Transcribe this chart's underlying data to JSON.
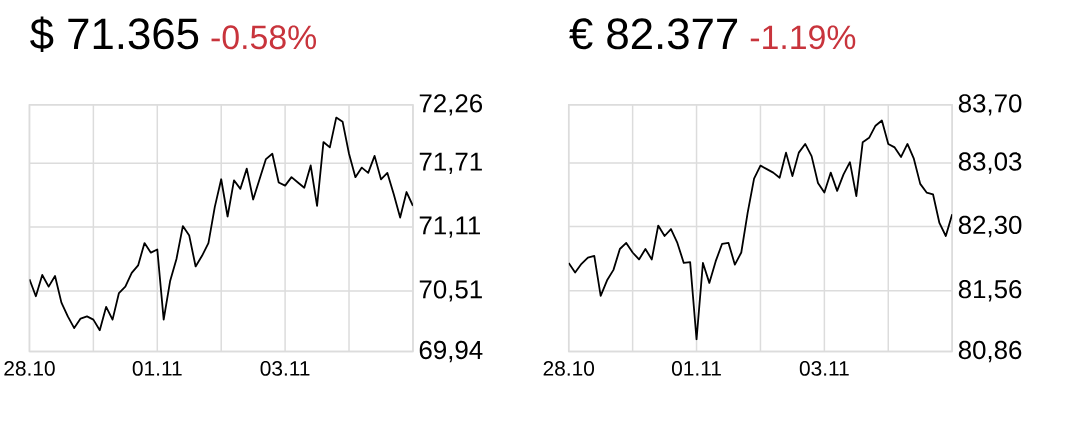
{
  "chart_data": [
    {
      "type": "line",
      "title": "$ 71.365",
      "subtitle": "-0.58%",
      "grid": true,
      "ylim": [
        69.94,
        72.26
      ],
      "yticks": [
        {
          "value": 69.94,
          "label": "69,94"
        },
        {
          "value": 70.51,
          "label": "70,51"
        },
        {
          "value": 71.11,
          "label": "71,11"
        },
        {
          "value": 71.71,
          "label": "71,71"
        },
        {
          "value": 72.26,
          "label": "72,26"
        }
      ],
      "categories": [
        "28.10",
        null,
        null,
        null,
        null,
        null,
        null,
        null,
        null,
        null,
        null,
        null,
        null,
        null,
        null,
        null,
        null,
        null,
        null,
        null,
        "01.11",
        null,
        null,
        null,
        null,
        null,
        null,
        null,
        null,
        null,
        null,
        null,
        null,
        null,
        null,
        null,
        null,
        null,
        null,
        null,
        "03.11",
        null,
        null,
        null,
        null,
        null,
        null,
        null,
        null,
        null,
        null,
        null,
        null,
        null,
        null,
        null,
        null,
        null,
        null,
        null,
        null
      ],
      "series": [
        {
          "color": "#000000",
          "values": [
            70.62,
            70.46,
            70.66,
            70.55,
            70.65,
            70.4,
            70.27,
            70.16,
            70.25,
            70.27,
            70.24,
            70.14,
            70.36,
            70.24,
            70.49,
            70.55,
            70.68,
            70.75,
            70.96,
            70.87,
            70.9,
            70.24,
            70.6,
            70.81,
            71.12,
            71.03,
            70.74,
            70.84,
            70.96,
            71.3,
            71.56,
            71.21,
            71.55,
            71.47,
            71.66,
            71.37,
            71.56,
            71.75,
            71.8,
            71.53,
            71.5,
            71.58,
            71.53,
            71.48,
            71.69,
            71.31,
            71.91,
            71.86,
            72.14,
            72.1,
            71.8,
            71.58,
            71.67,
            71.62,
            71.78,
            71.56,
            71.62,
            71.42,
            71.2,
            71.44,
            71.31
          ]
        }
      ]
    },
    {
      "type": "line",
      "title": "€ 82.377",
      "subtitle": "-1.19%",
      "grid": true,
      "ylim": [
        80.86,
        83.7
      ],
      "yticks": [
        {
          "value": 80.86,
          "label": "80,86"
        },
        {
          "value": 81.56,
          "label": "81,56"
        },
        {
          "value": 82.3,
          "label": "82,30"
        },
        {
          "value": 83.03,
          "label": "83,03"
        },
        {
          "value": 83.7,
          "label": "83,70"
        }
      ],
      "categories": [
        "28.10",
        null,
        null,
        null,
        null,
        null,
        null,
        null,
        null,
        null,
        null,
        null,
        null,
        null,
        null,
        null,
        null,
        null,
        null,
        null,
        "01.11",
        null,
        null,
        null,
        null,
        null,
        null,
        null,
        null,
        null,
        null,
        null,
        null,
        null,
        null,
        null,
        null,
        null,
        null,
        null,
        "03.11",
        null,
        null,
        null,
        null,
        null,
        null,
        null,
        null,
        null,
        null,
        null,
        null,
        null,
        null,
        null,
        null,
        null,
        null,
        null,
        null
      ],
      "series": [
        {
          "color": "#000000",
          "values": [
            81.88,
            81.77,
            81.87,
            81.94,
            81.96,
            81.5,
            81.68,
            81.8,
            82.04,
            82.11,
            82.0,
            81.92,
            82.04,
            81.92,
            82.31,
            82.19,
            82.27,
            82.11,
            81.88,
            81.89,
            81.0,
            81.88,
            81.65,
            81.9,
            82.1,
            82.11,
            81.86,
            82.0,
            82.46,
            82.85,
            83.0,
            82.96,
            82.92,
            82.86,
            83.15,
            82.88,
            83.15,
            83.25,
            83.11,
            82.8,
            82.69,
            82.92,
            82.71,
            82.9,
            83.04,
            82.65,
            83.27,
            83.32,
            83.46,
            83.52,
            83.25,
            83.21,
            83.1,
            83.25,
            83.08,
            82.79,
            82.69,
            82.67,
            82.34,
            82.19,
            82.44
          ]
        }
      ]
    }
  ]
}
